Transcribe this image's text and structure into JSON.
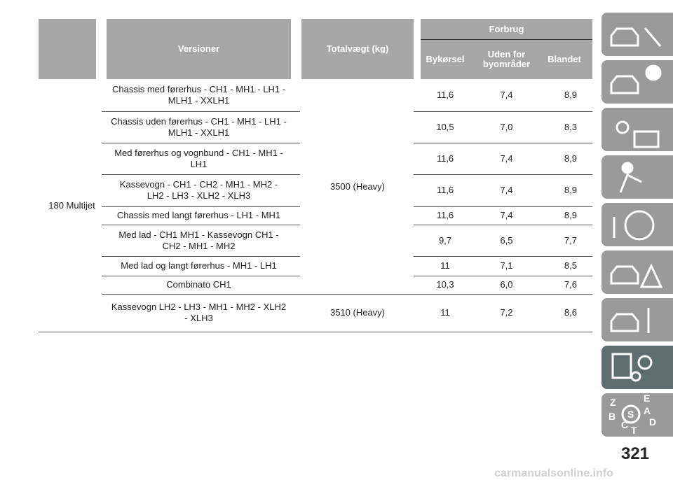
{
  "table": {
    "header": {
      "versioner": "Versioner",
      "totalvaegt": "Totalvægt (kg)",
      "forbrug": "Forbrug",
      "bykorsel": "Bykørsel",
      "uden_for": "Uden for byområder",
      "blandet": "Blandet"
    },
    "model": "180 Multijet",
    "weights": [
      "3500 (Heavy)",
      "3510 (Heavy)"
    ],
    "rows": [
      [
        "Chassis med førerhus - CH1 - MH1 - LH1 - MLH1 - XXLH1",
        "11,6",
        "7,4",
        "8,9"
      ],
      [
        "Chassis uden førerhus - CH1 - MH1 - LH1 - MLH1 - XXLH1",
        "10,5",
        "7,0",
        "8,3"
      ],
      [
        "Med førerhus og vognbund - CH1 - MH1 - LH1",
        "11,6",
        "7,4",
        "8,9"
      ],
      [
        "Kassevogn - CH1 - CH2 - MH1 - MH2 - LH2 - LH3 - XLH2 - XLH3",
        "11,6",
        "7,4",
        "8,9"
      ],
      [
        "Chassis med langt førerhus - LH1 - MH1",
        "11,6",
        "7,4",
        "8,9"
      ],
      [
        "Med lad - CH1 MH1 - Kassevogn CH1 - CH2 - MH1 - MH2",
        "9,7",
        "6,5",
        "7,7"
      ],
      [
        "Med lad og langt førerhus - MH1 - LH1",
        "11",
        "7,1",
        "8,5"
      ],
      [
        "Combinato CH1",
        "10,3",
        "6,0",
        "7,6"
      ],
      [
        "Kassevogn LH2 - LH3 - MH1 - MH2 - XLH2 - XLH3",
        "11",
        "7,2",
        "8,6"
      ]
    ]
  },
  "sidebar": {
    "letters": [
      "Z",
      "E",
      "S",
      "A",
      "B",
      "C",
      "T",
      "D"
    ]
  },
  "page_number": "321",
  "watermark": "carmanualsonline.info"
}
